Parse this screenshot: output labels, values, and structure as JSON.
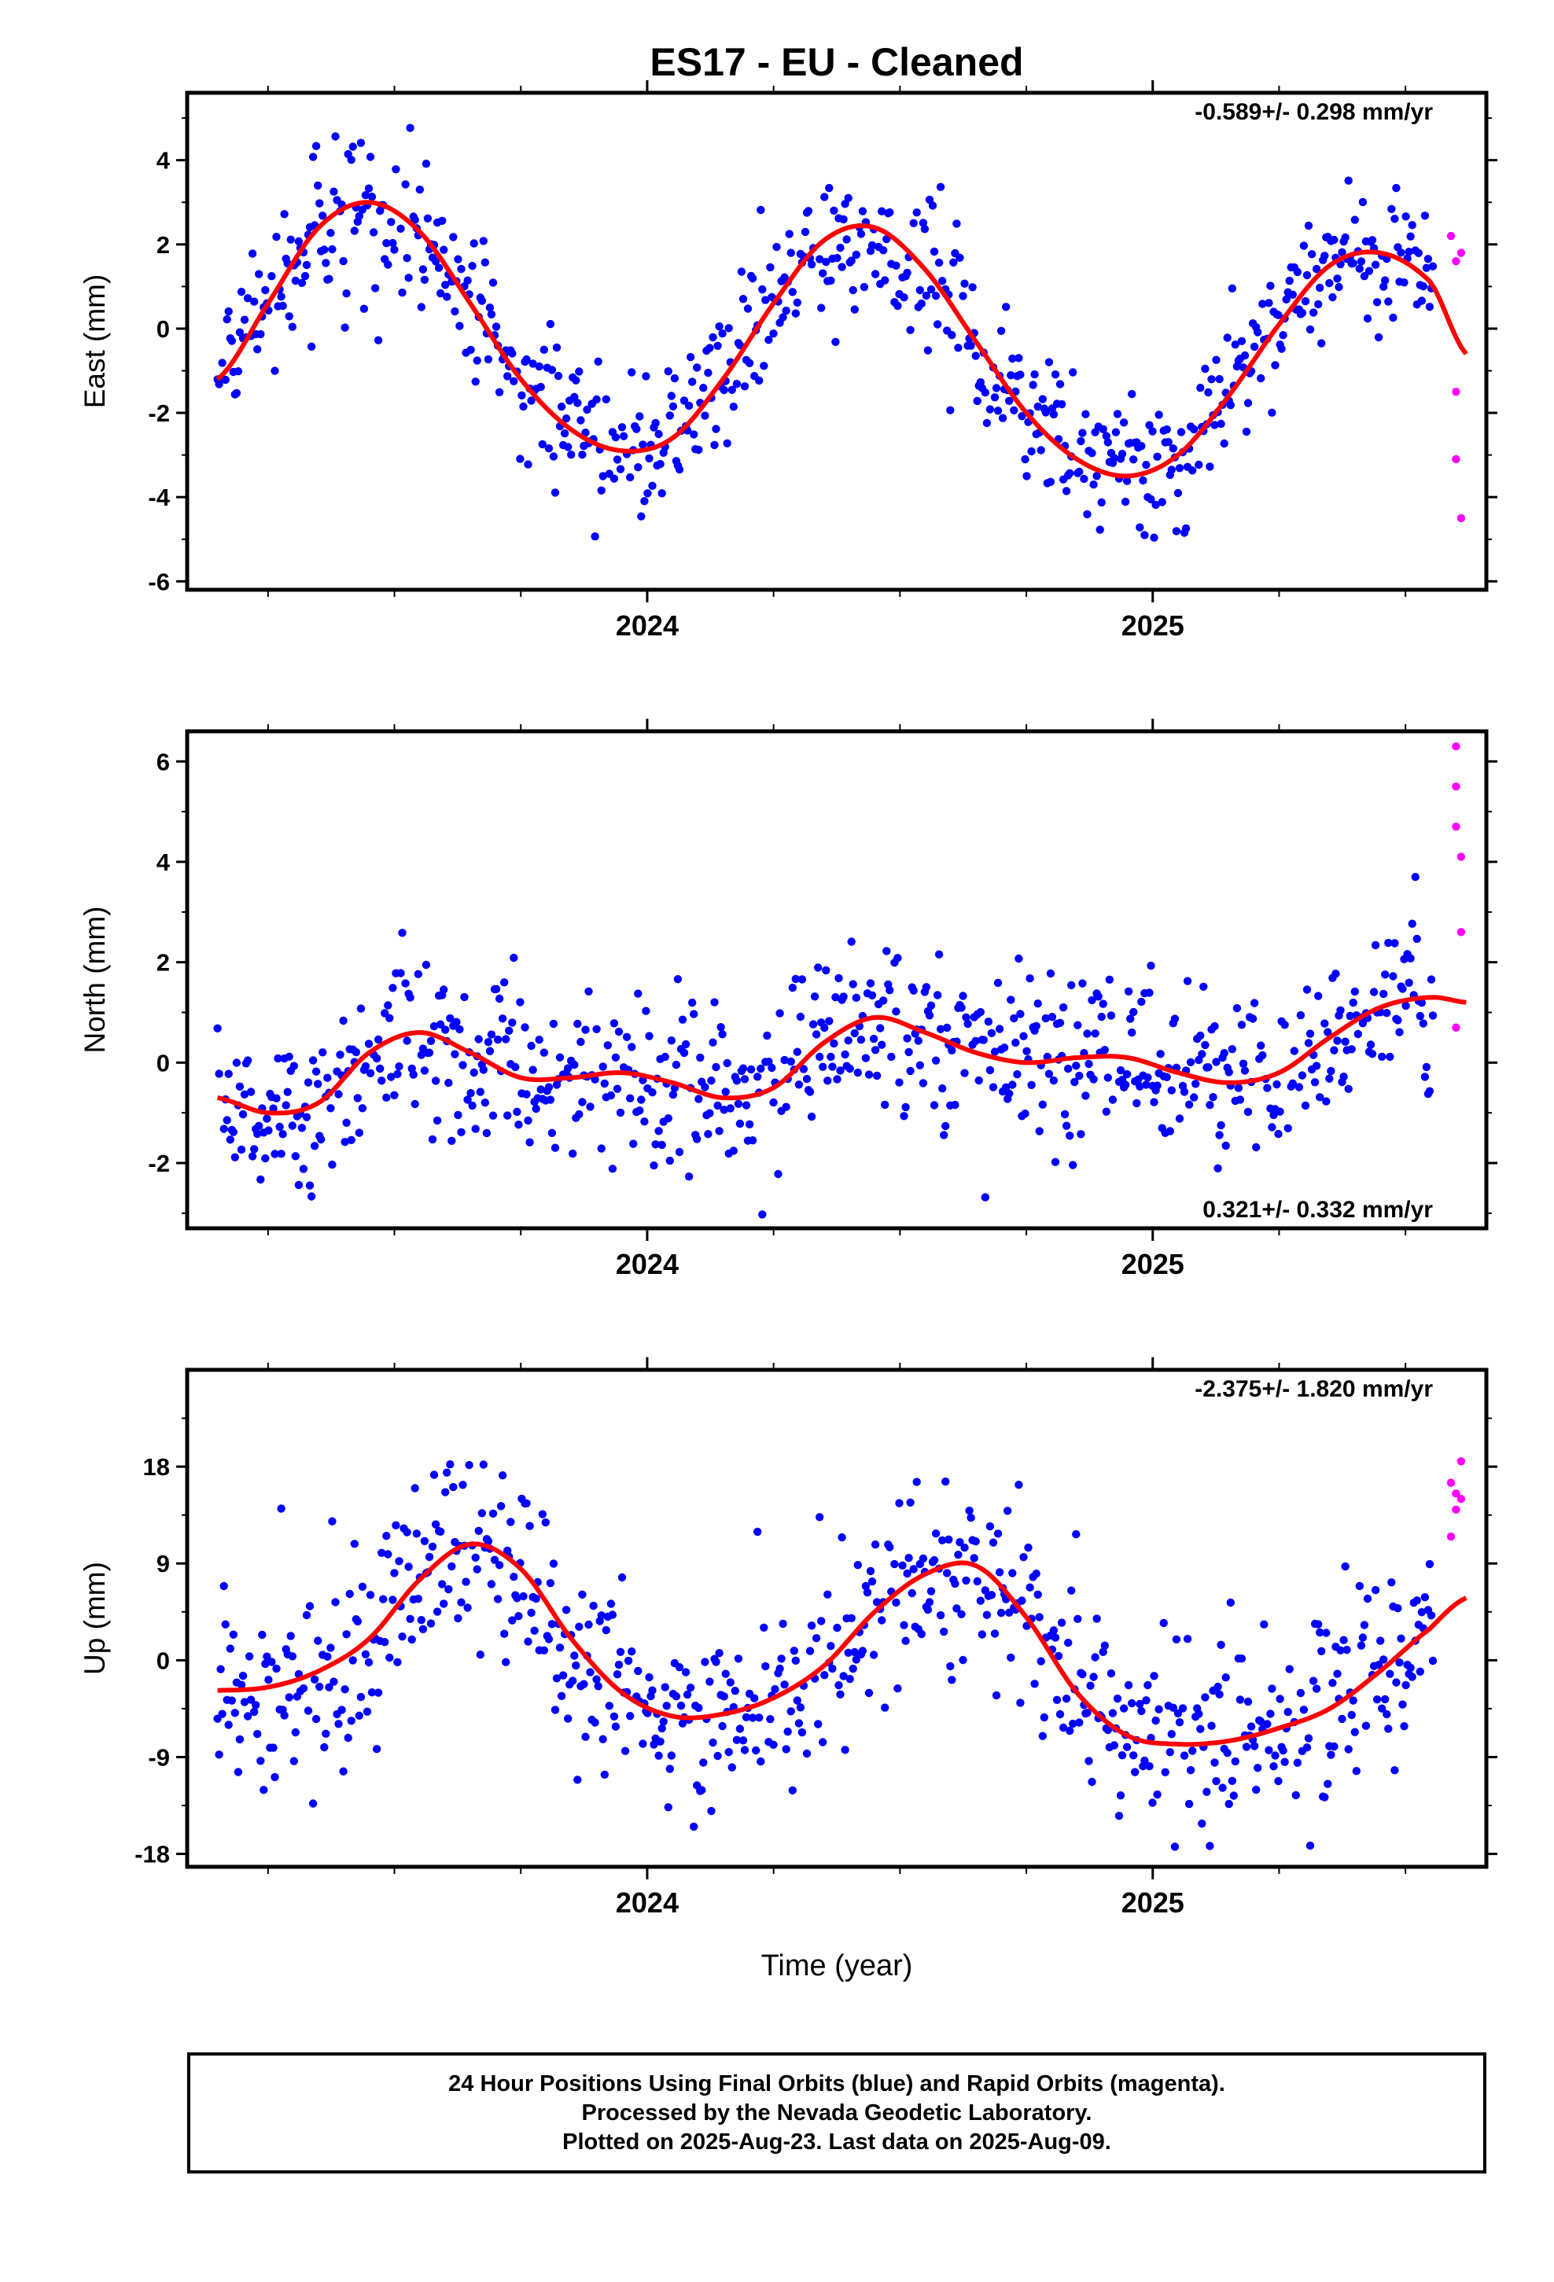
{
  "title": "ES17  - EU - Cleaned",
  "xlabel": "Time (year)",
  "footer": {
    "line1": "24 Hour Positions Using Final Orbits (blue) and Rapid Orbits (magenta).",
    "line2": "Processed by the Nevada Geodetic Laboratory.",
    "line3": "Plotted on 2025-Aug-23. Last data on 2025-Aug-09."
  },
  "colors": {
    "final_orbits": "#0000ff",
    "rapid_orbits": "#ff00ff",
    "fit": "#ff0000"
  },
  "chart_data": [
    {
      "type": "scatter",
      "component": "East",
      "ylabel": "East (mm)",
      "xlim": [
        2023.09,
        2025.66
      ],
      "ylim": [
        -6.2,
        5.6
      ],
      "yticks": [
        -6,
        -4,
        -2,
        0,
        2,
        4
      ],
      "xticks": [
        2024,
        2025
      ],
      "velocity_label": "-0.589+/- 0.298 mm/yr",
      "velocity_label_position": "top-right",
      "fit_model": {
        "trend_mm_per_yr": -0.589,
        "annual_amplitude_mm": 2.6,
        "peak_year_fraction": 0.42
      },
      "fit_curve": {
        "x": [
          2023.15,
          2023.25,
          2023.35,
          2023.45,
          2023.55,
          2023.65,
          2023.75,
          2023.85,
          2023.95,
          2024.05,
          2024.15,
          2024.25,
          2024.35,
          2024.45,
          2024.55,
          2024.65,
          2024.75,
          2024.85,
          2024.95,
          2025.05,
          2025.15,
          2025.25,
          2025.35,
          2025.45,
          2025.55,
          2025.62
        ],
        "y": [
          -1.2,
          0.6,
          2.4,
          3.0,
          2.3,
          0.6,
          -1.2,
          -2.4,
          -2.9,
          -2.6,
          -1.2,
          0.6,
          2.1,
          2.4,
          1.4,
          -0.3,
          -2.0,
          -3.1,
          -3.5,
          -3.0,
          -1.6,
          0.1,
          1.5,
          1.8,
          1.1,
          -0.6
        ]
      },
      "rapid": {
        "x": [
          2025.59,
          2025.6,
          2025.6,
          2025.6,
          2025.61,
          2025.61
        ],
        "y": [
          2.2,
          1.6,
          -1.5,
          -3.1,
          -4.5,
          1.8
        ]
      }
    },
    {
      "type": "scatter",
      "component": "North",
      "ylabel": "North (mm)",
      "xlim": [
        2023.09,
        2025.66
      ],
      "ylim": [
        -3.3,
        6.6
      ],
      "yticks": [
        -2,
        0,
        2,
        4,
        6
      ],
      "xticks": [
        2024,
        2025
      ],
      "velocity_label": "0.321+/- 0.332 mm/yr",
      "velocity_label_position": "bottom-right",
      "fit_model": {
        "trend_mm_per_yr": 0.321,
        "annual_amplitude_mm": 0.6,
        "peak_year_fraction": 0.55
      },
      "fit_curve": {
        "x": [
          2023.15,
          2023.25,
          2023.35,
          2023.45,
          2023.55,
          2023.65,
          2023.75,
          2023.85,
          2023.95,
          2024.05,
          2024.15,
          2024.25,
          2024.35,
          2024.45,
          2024.55,
          2024.65,
          2024.75,
          2024.85,
          2024.95,
          2025.05,
          2025.15,
          2025.25,
          2025.35,
          2025.45,
          2025.55,
          2025.62
        ],
        "y": [
          -0.7,
          -1.0,
          -0.8,
          0.2,
          0.6,
          0.2,
          -0.3,
          -0.3,
          -0.2,
          -0.4,
          -0.7,
          -0.5,
          0.4,
          0.9,
          0.6,
          0.2,
          0.0,
          0.1,
          0.1,
          -0.2,
          -0.4,
          -0.2,
          0.5,
          1.1,
          1.3,
          1.2
        ]
      },
      "rapid": {
        "x": [
          2025.6,
          2025.6,
          2025.6,
          2025.61,
          2025.61,
          2025.6
        ],
        "y": [
          6.3,
          5.5,
          4.7,
          4.1,
          2.6,
          0.7
        ]
      }
    },
    {
      "type": "scatter",
      "component": "Up",
      "ylabel": "Up (mm)",
      "xlim": [
        2023.09,
        2025.66
      ],
      "ylim": [
        -19.2,
        27
      ],
      "yticks": [
        -18,
        -9,
        0,
        9,
        18
      ],
      "xticks": [
        2024,
        2025
      ],
      "velocity_label": "-2.375+/- 1.820 mm/yr",
      "velocity_label_position": "top-right",
      "fit_model": {
        "trend_mm_per_yr": -2.375,
        "annual_amplitude_mm": 8.5,
        "peak_year_fraction": 0.65
      },
      "fit_curve": {
        "x": [
          2023.15,
          2023.25,
          2023.35,
          2023.45,
          2023.55,
          2023.65,
          2023.75,
          2023.85,
          2023.95,
          2024.05,
          2024.15,
          2024.25,
          2024.35,
          2024.45,
          2024.55,
          2024.65,
          2024.75,
          2024.85,
          2024.95,
          2025.05,
          2025.15,
          2025.25,
          2025.35,
          2025.45,
          2025.55,
          2025.62
        ],
        "y": [
          -2.8,
          -2.5,
          -1.0,
          2.0,
          7.5,
          10.8,
          8.5,
          2.0,
          -3.0,
          -5.2,
          -5.0,
          -3.5,
          -0.5,
          4.5,
          8.0,
          8.8,
          4.0,
          -3.0,
          -7.0,
          -7.8,
          -7.5,
          -6.3,
          -4.5,
          -1.0,
          3.0,
          5.8
        ]
      },
      "rapid": {
        "x": [
          2025.59,
          2025.6,
          2025.61,
          2025.6,
          2025.61,
          2025.59
        ],
        "y": [
          16.5,
          15.5,
          18.5,
          14.0,
          15.0,
          11.5
        ]
      }
    }
  ]
}
